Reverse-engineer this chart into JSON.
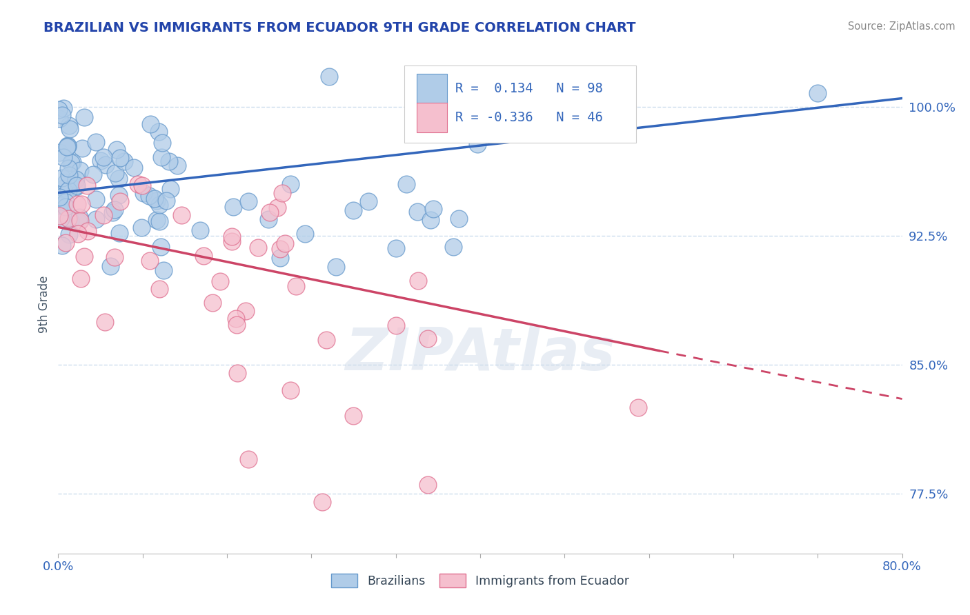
{
  "title": "BRAZILIAN VS IMMIGRANTS FROM ECUADOR 9TH GRADE CORRELATION CHART",
  "source": "Source: ZipAtlas.com",
  "ylabel": "9th Grade",
  "yticks": [
    77.5,
    85.0,
    92.5,
    100.0
  ],
  "ytick_labels": [
    "77.5%",
    "85.0%",
    "92.5%",
    "100.0%"
  ],
  "xlim": [
    0.0,
    80.0
  ],
  "ylim": [
    74.0,
    103.0
  ],
  "blue_R": 0.134,
  "blue_N": 98,
  "pink_R": -0.336,
  "pink_N": 46,
  "blue_color": "#b0cce8",
  "blue_edge": "#6699cc",
  "pink_color": "#f5bfce",
  "pink_edge": "#e07090",
  "trend_blue": "#3366bb",
  "trend_pink": "#cc4466",
  "legend_label_blue": "Brazilians",
  "legend_label_pink": "Immigrants from Ecuador",
  "watermark": "ZIPAtlas",
  "title_color": "#2244aa",
  "source_color": "#888888",
  "ylabel_color": "#445566",
  "tick_color": "#3366bb",
  "grid_color": "#ccddee",
  "background_color": "#ffffff",
  "blue_trendline": [
    0.0,
    95.0,
    80.0,
    100.5
  ],
  "pink_trendline_solid": [
    0.0,
    93.0,
    57.0,
    85.8
  ],
  "pink_trendline_dash": [
    57.0,
    85.8,
    80.0,
    83.0
  ],
  "figsize": [
    14.06,
    8.92
  ],
  "dpi": 100
}
